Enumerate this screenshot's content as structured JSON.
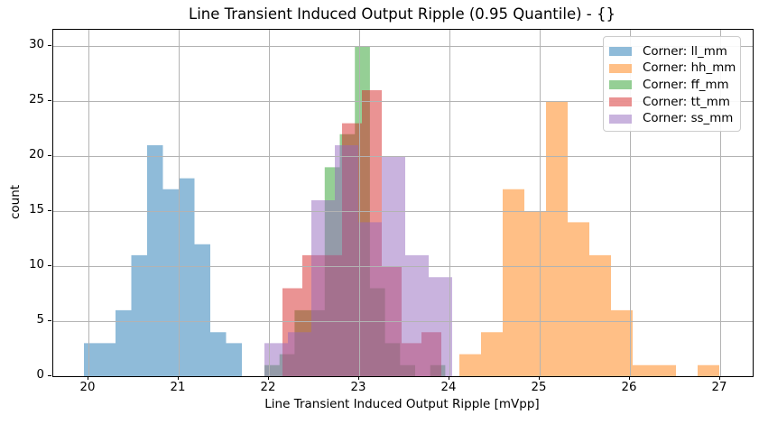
{
  "chart_data": {
    "type": "bar",
    "subtype": "overlapping-histograms",
    "title": "Line Transient Induced Output Ripple (0.95 Quantile) - {}",
    "xlabel": "Line Transient Induced Output Ripple [mVpp]",
    "ylabel": "count",
    "xlim": [
      19.61,
      27.36
    ],
    "ylim": [
      0,
      31.5
    ],
    "xticks": [
      20,
      21,
      22,
      23,
      24,
      25,
      26,
      27
    ],
    "yticks": [
      0,
      5,
      10,
      15,
      20,
      25,
      30
    ],
    "grid": true,
    "grid_color": "#b3b3b3",
    "bar_alpha": 0.5,
    "legend_position": "upper right",
    "series": [
      {
        "name": "Corner: ll_mm",
        "color": "#1f77b4",
        "bin_start": 19.95,
        "bin_width": 0.175,
        "counts": [
          3,
          3,
          6,
          11,
          21,
          17,
          18,
          12,
          4,
          3
        ]
      },
      {
        "name": "Corner: hh_mm",
        "color": "#ff7f0e",
        "bin_start": 24.11,
        "bin_width": 0.24,
        "counts": [
          2,
          4,
          17,
          15,
          25,
          14,
          11,
          6,
          1,
          1,
          0,
          1
        ]
      },
      {
        "name": "Corner: ff_mm",
        "color": "#2ca02c",
        "bin_start": 21.95,
        "bin_width": 0.167,
        "counts": [
          1,
          2,
          6,
          6,
          19,
          22,
          30,
          8,
          3,
          1,
          0,
          1
        ]
      },
      {
        "name": "Corner: tt_mm",
        "color": "#d62728",
        "bin_start": 22.15,
        "bin_width": 0.22,
        "counts": [
          8,
          11,
          11,
          23,
          26,
          10,
          3,
          4
        ]
      },
      {
        "name": "Corner: ss_mm",
        "color": "#9467bd",
        "bin_start": 21.95,
        "bin_width": 0.26,
        "counts": [
          3,
          4,
          16,
          21,
          14,
          20,
          11,
          9
        ]
      }
    ]
  }
}
